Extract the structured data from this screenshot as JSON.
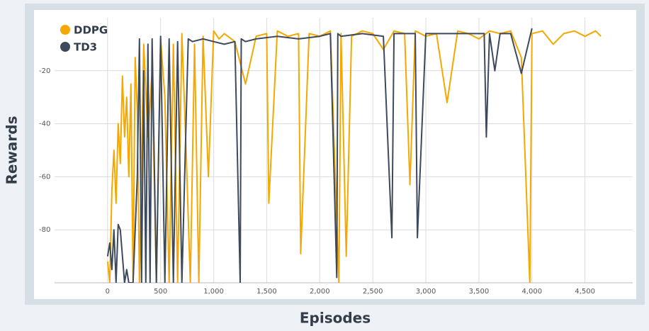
{
  "chart_data": {
    "type": "line",
    "y_label": "Rewards",
    "x_label": "Episodes",
    "xlim": [
      -500,
      4950
    ],
    "ylim": [
      -100,
      0
    ],
    "xticks": [
      0,
      500,
      {
        "value": 1000,
        "label": "1,000"
      },
      {
        "value": 1500,
        "label": "1,500"
      },
      {
        "value": 2000,
        "label": "2,000"
      },
      {
        "value": 2500,
        "label": "2,500"
      },
      {
        "value": 3000,
        "label": "3,000"
      },
      {
        "value": 3500,
        "label": "3,500"
      },
      {
        "value": 4000,
        "label": "4,000"
      },
      {
        "value": 4500,
        "label": "4,500"
      }
    ],
    "yticks": [
      -80,
      -60,
      -40,
      -20
    ],
    "grid": true,
    "series": [
      {
        "name": "DDPG",
        "color": "#f5a800",
        "x": [
          0,
          20,
          40,
          60,
          80,
          100,
          120,
          140,
          160,
          180,
          200,
          220,
          240,
          260,
          280,
          300,
          340,
          380,
          420,
          460,
          500,
          540,
          580,
          620,
          660,
          700,
          740,
          780,
          820,
          860,
          900,
          950,
          1000,
          1050,
          1100,
          1200,
          1300,
          1400,
          1500,
          1520,
          1600,
          1700,
          1800,
          1820,
          1900,
          2000,
          2100,
          2180,
          2200,
          2250,
          2300,
          2400,
          2500,
          2600,
          2700,
          2800,
          2850,
          2900,
          3000,
          3100,
          3200,
          3300,
          3400,
          3500,
          3600,
          3700,
          3800,
          3900,
          3980,
          4000,
          4100,
          4200,
          4300,
          4400,
          4500,
          4600,
          4650
        ],
        "values": [
          -92,
          -100,
          -65,
          -50,
          -70,
          -40,
          -55,
          -22,
          -45,
          -30,
          -60,
          -25,
          -100,
          -15,
          -35,
          -100,
          -10,
          -45,
          -20,
          -100,
          -8,
          -30,
          -100,
          -10,
          -100,
          -6,
          -50,
          -100,
          -10,
          -100,
          -7,
          -60,
          -5,
          -8,
          -6,
          -9,
          -25,
          -7,
          -6,
          -70,
          -5,
          -7,
          -6,
          -89,
          -6,
          -7,
          -5,
          -100,
          -6,
          -90,
          -7,
          -5,
          -6,
          -12,
          -5,
          -6,
          -63,
          -5,
          -7,
          -6,
          -32,
          -5,
          -6,
          -8,
          -5,
          -6,
          -5,
          -15,
          -100,
          -6,
          -5,
          -10,
          -6,
          -5,
          -7,
          -5,
          -7
        ]
      },
      {
        "name": "TD3",
        "color": "#3d4a5c",
        "x": [
          0,
          20,
          40,
          60,
          80,
          100,
          120,
          140,
          160,
          180,
          200,
          240,
          280,
          300,
          320,
          340,
          360,
          380,
          400,
          420,
          460,
          500,
          540,
          580,
          620,
          660,
          700,
          760,
          800,
          900,
          1000,
          1100,
          1200,
          1250,
          1260,
          1300,
          1400,
          1600,
          1800,
          2000,
          2100,
          2160,
          2170,
          2200,
          2400,
          2600,
          2680,
          2700,
          2800,
          2900,
          2920,
          3000,
          3200,
          3400,
          3550,
          3570,
          3600,
          3650,
          3700,
          3800,
          3900,
          4000
        ],
        "values": [
          -90,
          -85,
          -95,
          -80,
          -100,
          -78,
          -80,
          -90,
          -100,
          -95,
          -100,
          -100,
          -60,
          -8,
          -100,
          -20,
          -100,
          -10,
          -100,
          -8,
          -100,
          -7,
          -100,
          -8,
          -100,
          -9,
          -100,
          -8,
          -9,
          -8,
          -9,
          -10,
          -9,
          -100,
          -8,
          -9,
          -8,
          -7,
          -8,
          -7,
          -6,
          -98,
          -6,
          -7,
          -6,
          -7,
          -83,
          -6,
          -6,
          -6,
          -83,
          -6,
          -6,
          -6,
          -6,
          -45,
          -6,
          -20,
          -6,
          -6,
          -21,
          -4
        ]
      }
    ]
  }
}
